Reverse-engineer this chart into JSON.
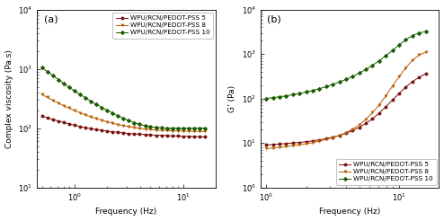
{
  "panel_a": {
    "title": "(a)",
    "xlabel": "Frequency (Hz)",
    "ylabel": "Complex viscosity (Pa.s)",
    "xlim": [
      0.45,
      20
    ],
    "ylim": [
      10,
      10000
    ],
    "yticks": [
      10,
      100,
      1000,
      10000
    ],
    "ytick_labels": [
      "10¹",
      "10²",
      "10³",
      "10⁴"
    ],
    "series": [
      {
        "label": "WPU/RCN/PEDOT-PSS 5",
        "color": "#7B1010",
        "marker": "o",
        "x": [
          0.5,
          0.56,
          0.63,
          0.71,
          0.79,
          0.89,
          1.0,
          1.12,
          1.26,
          1.41,
          1.58,
          1.78,
          2.0,
          2.24,
          2.51,
          2.82,
          3.16,
          3.55,
          3.98,
          4.47,
          5.01,
          5.62,
          6.31,
          7.08,
          7.94,
          8.91,
          10.0,
          11.22,
          12.59,
          14.13,
          15.85
        ],
        "y": [
          160,
          150,
          140,
          132,
          125,
          118,
          112,
          107,
          102,
          98,
          95,
          92,
          89,
          87,
          85,
          83,
          81,
          80,
          79,
          78,
          77,
          76,
          76,
          75,
          74,
          74,
          73,
          73,
          72,
          72,
          71
        ]
      },
      {
        "label": "WPU/RCN/PEDOT-PSS 8",
        "color": "#B85C00",
        "marker": "v",
        "x": [
          0.5,
          0.56,
          0.63,
          0.71,
          0.79,
          0.89,
          1.0,
          1.12,
          1.26,
          1.41,
          1.58,
          1.78,
          2.0,
          2.24,
          2.51,
          2.82,
          3.16,
          3.55,
          3.98,
          4.47,
          5.01,
          5.62,
          6.31,
          7.08,
          7.94,
          8.91,
          10.0,
          11.22,
          12.59,
          14.13,
          15.85
        ],
        "y": [
          370,
          330,
          295,
          265,
          240,
          218,
          198,
          182,
          167,
          155,
          145,
          136,
          128,
          121,
          115,
          110,
          106,
          102,
          99,
          97,
          95,
          93,
          92,
          91,
          90,
          90,
          89,
          89,
          88,
          88,
          88
        ]
      },
      {
        "label": "WPU/RCN/PEDOT-PSS 10",
        "color": "#1A5C00",
        "marker": "D",
        "x": [
          0.5,
          0.56,
          0.63,
          0.71,
          0.79,
          0.89,
          1.0,
          1.12,
          1.26,
          1.41,
          1.58,
          1.78,
          2.0,
          2.24,
          2.51,
          2.82,
          3.16,
          3.55,
          3.98,
          4.47,
          5.01,
          5.62,
          6.31,
          7.08,
          7.94,
          8.91,
          10.0,
          11.22,
          12.59,
          14.13,
          15.85
        ],
        "y": [
          1050,
          900,
          770,
          660,
          570,
          490,
          425,
          370,
          325,
          285,
          252,
          224,
          200,
          180,
          162,
          147,
          135,
          124,
          116,
          110,
          106,
          103,
          101,
          100,
          100,
          100,
          100,
          100,
          100,
          100,
          100
        ]
      }
    ]
  },
  "panel_b": {
    "title": "(b)",
    "xlabel": "Frequency (Hz)",
    "ylabel": "G’ (Pa)",
    "xlim": [
      0.9,
      20
    ],
    "ylim": [
      1,
      10000
    ],
    "series": [
      {
        "label": "WPU/RCN/PEDOT-PSS 5",
        "color": "#7B1010",
        "marker": "o",
        "x": [
          1.0,
          1.12,
          1.26,
          1.41,
          1.58,
          1.78,
          2.0,
          2.24,
          2.51,
          2.82,
          3.16,
          3.55,
          3.98,
          4.47,
          5.01,
          5.62,
          6.31,
          7.08,
          7.94,
          8.91,
          10.0,
          11.22,
          12.59,
          14.13,
          15.85
        ],
        "y": [
          9.0,
          9.2,
          9.5,
          9.7,
          10.0,
          10.3,
          10.7,
          11.2,
          11.8,
          12.5,
          13.5,
          14.8,
          16.5,
          19.0,
          22.5,
          27.5,
          35.0,
          47.0,
          65.0,
          92.0,
          130.0,
          180.0,
          240.0,
          300.0,
          360.0
        ]
      },
      {
        "label": "WPU/RCN/PEDOT-PSS 8",
        "color": "#B85C00",
        "marker": "v",
        "x": [
          1.0,
          1.12,
          1.26,
          1.41,
          1.58,
          1.78,
          2.0,
          2.24,
          2.51,
          2.82,
          3.16,
          3.55,
          3.98,
          4.47,
          5.01,
          5.62,
          6.31,
          7.08,
          7.94,
          8.91,
          10.0,
          11.22,
          12.59,
          14.13,
          15.85
        ],
        "y": [
          7.5,
          7.7,
          8.0,
          8.3,
          8.7,
          9.1,
          9.6,
          10.2,
          11.0,
          12.0,
          13.2,
          14.8,
          17.0,
          20.5,
          25.5,
          34.0,
          48.0,
          72.0,
          115.0,
          190.0,
          310.0,
          490.0,
          720.0,
          950.0,
          1100.0
        ]
      },
      {
        "label": "WPU/RCN/PEDOT-PSS 10",
        "color": "#1A5C00",
        "marker": "D",
        "x": [
          1.0,
          1.12,
          1.26,
          1.41,
          1.58,
          1.78,
          2.0,
          2.24,
          2.51,
          2.82,
          3.16,
          3.55,
          3.98,
          4.47,
          5.01,
          5.62,
          6.31,
          7.08,
          7.94,
          8.91,
          10.0,
          11.22,
          12.59,
          14.13,
          15.85
        ],
        "y": [
          100,
          105,
          110,
          115,
          122,
          130,
          140,
          152,
          167,
          185,
          207,
          235,
          270,
          315,
          375,
          450,
          560,
          710,
          920,
          1200,
          1600,
          2100,
          2600,
          3000,
          3200
        ]
      }
    ]
  },
  "background": "#ffffff",
  "legend_fontsize": 5.2,
  "tick_fontsize": 6,
  "label_fontsize": 6.5,
  "title_fontsize": 8
}
